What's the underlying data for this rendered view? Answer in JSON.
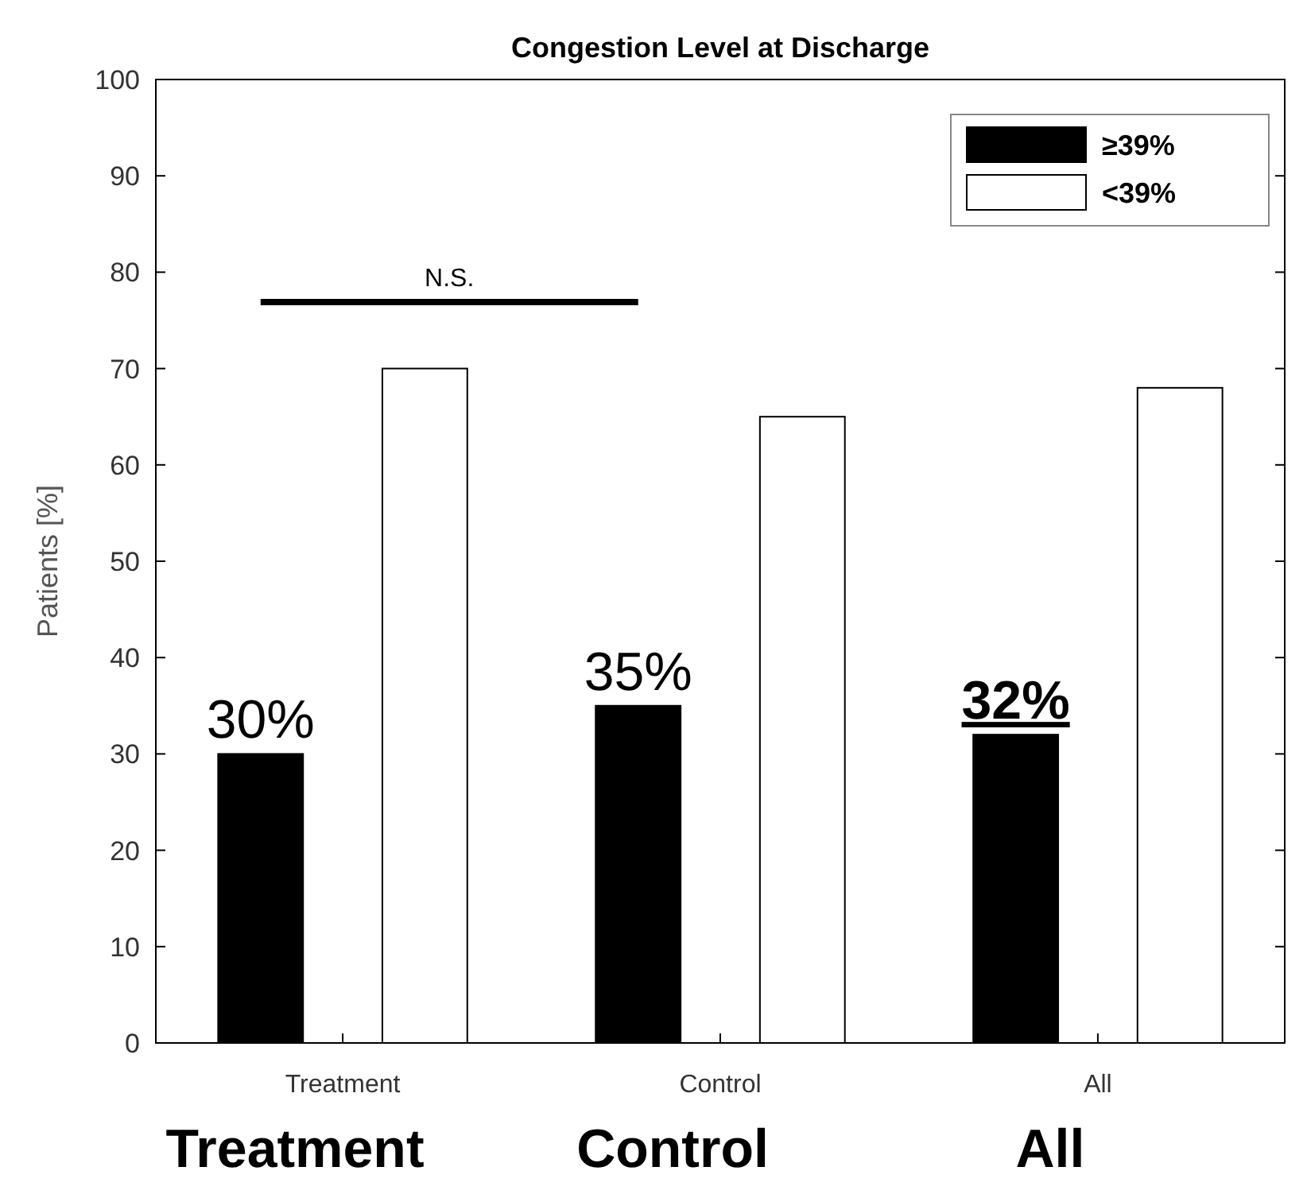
{
  "chart_data": {
    "type": "bar",
    "title": "Congestion Level at Discharge",
    "ylabel": "Patients [%]",
    "categories": [
      "Treatment",
      "Control",
      "All"
    ],
    "series": [
      {
        "name": "≥39%",
        "color": "#000000",
        "values": [
          30,
          35,
          32
        ],
        "value_labels": [
          "30%",
          "35%",
          "32%"
        ]
      },
      {
        "name": "<39%",
        "color": "#ffffff",
        "values": [
          70,
          65,
          68
        ]
      }
    ],
    "ylim": [
      0,
      100
    ],
    "yticks": [
      0,
      10,
      20,
      30,
      40,
      50,
      60,
      70,
      80,
      90,
      100
    ],
    "grid": false,
    "legend": "top right",
    "annotations": [
      "N.S.",
      "Treatment",
      "Control",
      "All"
    ]
  }
}
